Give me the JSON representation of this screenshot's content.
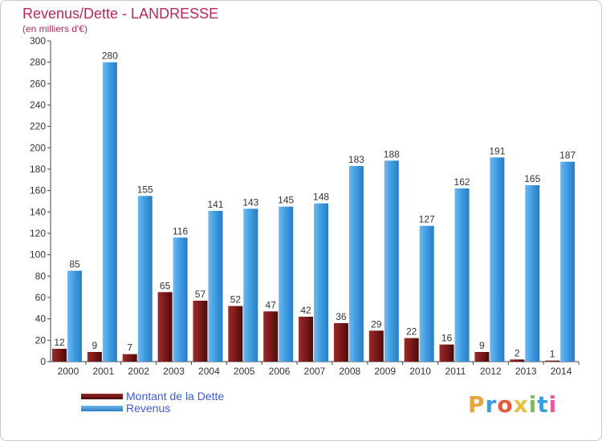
{
  "title": "Revenus/Dette - LANDRESSE",
  "subtitle": "(en milliers d'€)",
  "logo": {
    "letters": [
      "P",
      "r",
      "o",
      "x",
      "i",
      "t",
      "i"
    ],
    "colors": [
      "#e8a33c",
      "#3a9edb",
      "#e85a3c",
      "#e8c03c",
      "#7cc04c",
      "#3a9edb",
      "#e85a9c"
    ]
  },
  "legend": [
    {
      "label": "Montant de la Dette",
      "color": "#7a1a1a"
    },
    {
      "label": "Revenus",
      "color": "#3d9be0"
    }
  ],
  "chart_data": {
    "type": "bar",
    "title": "Revenus/Dette - LANDRESSE",
    "ylabel": "(en milliers d'€)",
    "xlabel": "",
    "categories": [
      "2000",
      "2001",
      "2002",
      "2003",
      "2004",
      "2005",
      "2006",
      "2007",
      "2008",
      "2009",
      "2010",
      "2011",
      "2012",
      "2013",
      "2014"
    ],
    "series": [
      {
        "name": "Montant de la Dette",
        "color": "#7a1a1a",
        "values": [
          12,
          9,
          7,
          65,
          57,
          52,
          47,
          42,
          36,
          29,
          22,
          16,
          9,
          2,
          1
        ]
      },
      {
        "name": "Revenus",
        "color": "#3d9be0",
        "values": [
          85,
          280,
          155,
          116,
          141,
          143,
          145,
          148,
          183,
          188,
          127,
          162,
          191,
          165,
          187
        ]
      }
    ],
    "ylim": [
      0,
      300
    ],
    "yticks": [
      0,
      20,
      40,
      60,
      80,
      100,
      120,
      140,
      160,
      180,
      200,
      220,
      240,
      260,
      280,
      300
    ],
    "grid": false,
    "legend_position": "bottom-left"
  }
}
